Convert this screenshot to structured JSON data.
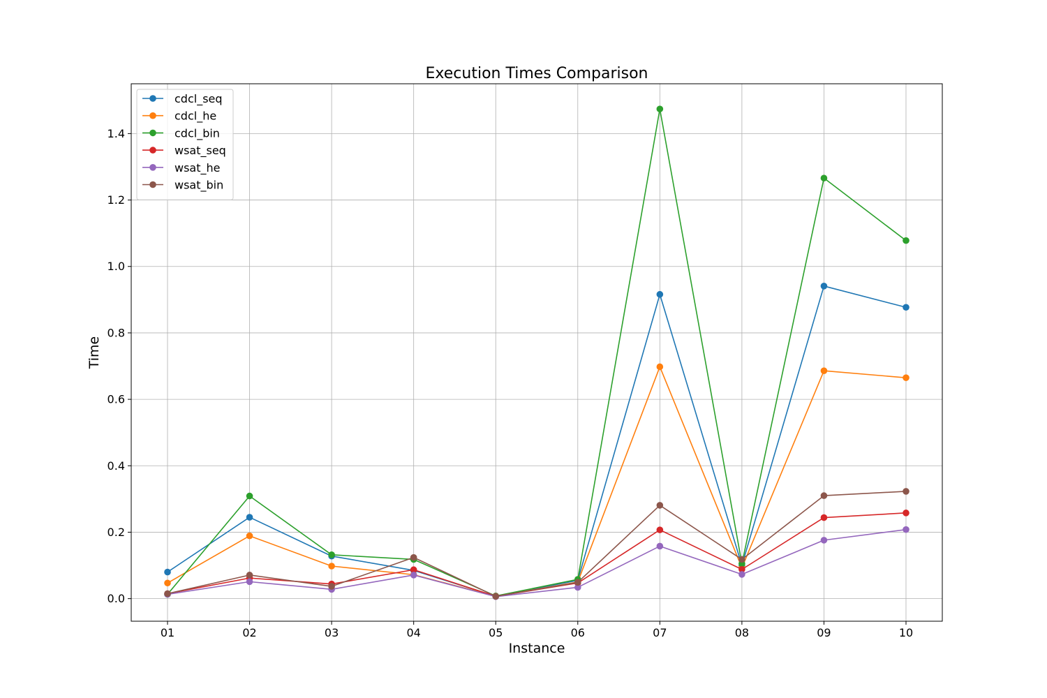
{
  "chart_data": {
    "type": "line",
    "title": "Execution Times Comparison",
    "xlabel": "Instance",
    "ylabel": "Time",
    "categories": [
      "01",
      "02",
      "03",
      "04",
      "05",
      "06",
      "07",
      "08",
      "09",
      "10"
    ],
    "ylim": [
      -0.068,
      1.55
    ],
    "yticks": [
      "0.0",
      "0.2",
      "0.4",
      "0.6",
      "0.8",
      "1.0",
      "1.2",
      "1.4"
    ],
    "grid": true,
    "legend_position": "top-left",
    "series": [
      {
        "name": "cdcl_seq",
        "color": "#1f77b4",
        "values": [
          0.08,
          0.245,
          0.128,
          0.085,
          0.007,
          0.055,
          0.916,
          0.1,
          0.941,
          0.877
        ]
      },
      {
        "name": "cdcl_he",
        "color": "#ff7f0e",
        "values": [
          0.047,
          0.189,
          0.098,
          0.072,
          0.007,
          0.05,
          0.698,
          0.093,
          0.686,
          0.665
        ]
      },
      {
        "name": "cdcl_bin",
        "color": "#2ca02c",
        "values": [
          0.013,
          0.309,
          0.132,
          0.118,
          0.008,
          0.058,
          1.474,
          0.105,
          1.266,
          1.078
        ]
      },
      {
        "name": "wsat_seq",
        "color": "#d62728",
        "values": [
          0.015,
          0.062,
          0.044,
          0.087,
          0.007,
          0.047,
          0.207,
          0.088,
          0.244,
          0.258
        ]
      },
      {
        "name": "wsat_he",
        "color": "#9467bd",
        "values": [
          0.013,
          0.051,
          0.028,
          0.071,
          0.006,
          0.034,
          0.158,
          0.073,
          0.176,
          0.208
        ]
      },
      {
        "name": "wsat_bin",
        "color": "#8c564b",
        "values": [
          0.015,
          0.071,
          0.037,
          0.124,
          0.007,
          0.049,
          0.281,
          0.118,
          0.31,
          0.323
        ]
      }
    ]
  }
}
